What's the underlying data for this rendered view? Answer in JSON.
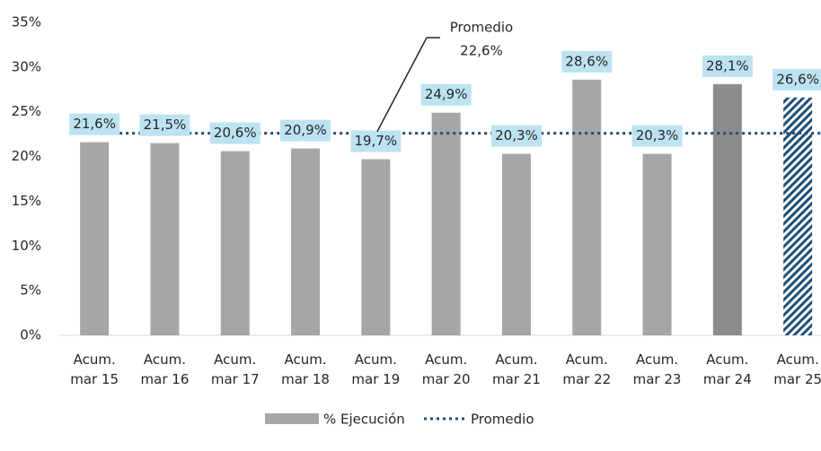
{
  "chart_data": {
    "type": "bar",
    "categories": [
      [
        "Acum.",
        "mar 15"
      ],
      [
        "Acum.",
        "mar 16"
      ],
      [
        "Acum.",
        "mar 17"
      ],
      [
        "Acum.",
        "mar 18"
      ],
      [
        "Acum.",
        "mar 19"
      ],
      [
        "Acum.",
        "mar 20"
      ],
      [
        "Acum.",
        "mar 21"
      ],
      [
        "Acum.",
        "mar 22"
      ],
      [
        "Acum.",
        "mar 23"
      ],
      [
        "Acum.",
        "mar 24"
      ],
      [
        "Acum.",
        "mar 25"
      ]
    ],
    "series": [
      {
        "name": "% Ejecución",
        "color": "#a6a6a6",
        "colors": [
          "#a6a6a6",
          "#a6a6a6",
          "#a6a6a6",
          "#a6a6a6",
          "#a6a6a6",
          "#a6a6a6",
          "#a6a6a6",
          "#a6a6a6",
          "#a6a6a6",
          "#8c8c8c",
          "#1f4e79"
        ],
        "hatched": [
          false,
          false,
          false,
          false,
          false,
          false,
          false,
          false,
          false,
          false,
          true
        ],
        "values": [
          21.6,
          21.5,
          20.6,
          20.9,
          19.7,
          24.9,
          20.3,
          28.6,
          20.3,
          28.1,
          26.6
        ],
        "value_labels": [
          "21,6%",
          "21,5%",
          "20,6%",
          "20,9%",
          "19,7%",
          "24,9%",
          "20,3%",
          "28,6%",
          "20,3%",
          "28,1%",
          "26,6%"
        ]
      },
      {
        "name": "Promedio",
        "color": "#1f4e79",
        "style": "dotted",
        "value": 22.6,
        "annotation": [
          "Promedio",
          "22,6%"
        ]
      }
    ],
    "label_color": "#bde3f2",
    "ylim": [
      0,
      35
    ],
    "yticks": [
      {
        "value": 0,
        "label": "0%"
      },
      {
        "value": 5,
        "label": "5%"
      },
      {
        "value": 10,
        "label": "10%"
      },
      {
        "value": 15,
        "label": "15%"
      },
      {
        "value": 20,
        "label": "20%"
      },
      {
        "value": 25,
        "label": "25%"
      },
      {
        "value": 30,
        "label": "30%"
      },
      {
        "value": 35,
        "label": "35%"
      }
    ],
    "grid": false,
    "legend": "bottom"
  }
}
